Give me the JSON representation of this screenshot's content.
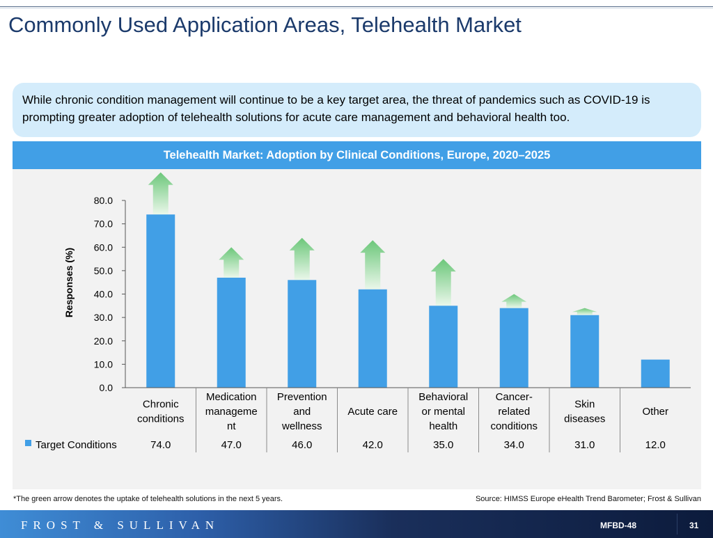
{
  "page_title": "Commonly Used Application Areas, Telehealth Market",
  "callout_text": "While chronic condition management will continue to be a key target area, the threat of pandemics such as COVID-19 is prompting greater adoption of telehealth solutions for acute care management and behavioral health too.",
  "footnote": "*The green arrow denotes the uptake of telehealth solutions in the next 5 years.",
  "source": "Source: HIMSS Europe eHealth Trend Barometer;  Frost & Sullivan",
  "footer": {
    "brand": "FROST & SULLIVAN",
    "code": "MFBD-48",
    "page_number": "31"
  },
  "colors": {
    "bar": "#419fe6",
    "header": "#419fe6",
    "arrow": "#7fd08a",
    "title": "#1b3a6b"
  },
  "chart_data": {
    "type": "bar",
    "title": "Telehealth Market: Adoption by Clinical Conditions, Europe, 2020–2025",
    "ylabel": "Responses (%)",
    "ylim": [
      0,
      80
    ],
    "yticks": [
      "0.0",
      "10.0",
      "20.0",
      "30.0",
      "40.0",
      "50.0",
      "60.0",
      "70.0",
      "80.0"
    ],
    "categories": [
      [
        "Chronic",
        "conditions"
      ],
      [
        "Medication",
        "manageme",
        "nt"
      ],
      [
        "Prevention",
        "and",
        "wellness"
      ],
      [
        "Acute care"
      ],
      [
        "Behavioral",
        "or mental",
        "health"
      ],
      [
        "Cancer-",
        "related",
        "conditions"
      ],
      [
        "Skin",
        "diseases"
      ],
      [
        "Other"
      ]
    ],
    "series": [
      {
        "name": "Target Conditions",
        "values": [
          74.0,
          47.0,
          46.0,
          42.0,
          35.0,
          34.0,
          31.0,
          12.0
        ]
      }
    ],
    "value_labels": [
      "74.0",
      "47.0",
      "46.0",
      "42.0",
      "35.0",
      "34.0",
      "31.0",
      "12.0"
    ],
    "uptake_arrow_tops": [
      92,
      60,
      64,
      63,
      55,
      40,
      34,
      null
    ],
    "legend": "data table"
  }
}
